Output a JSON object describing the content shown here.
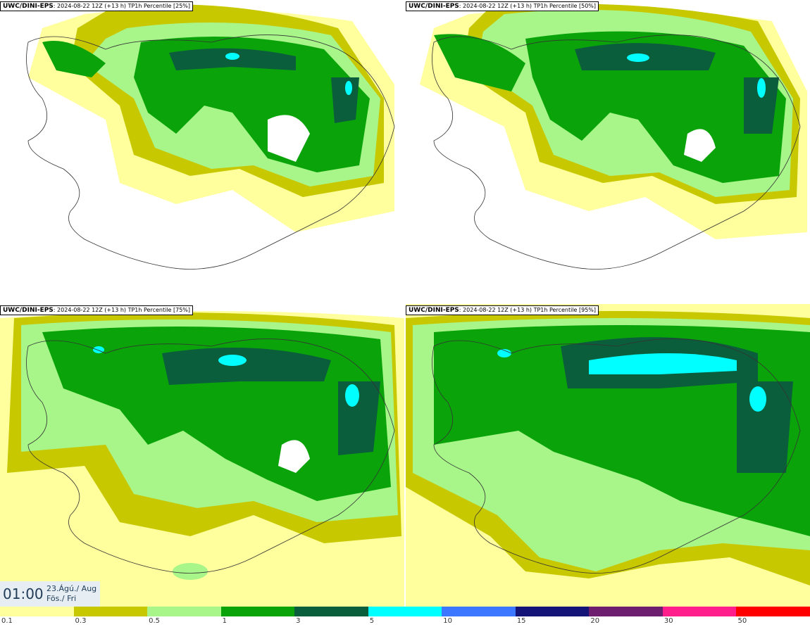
{
  "panels": [
    {
      "model": "UWC/DINI-EPS",
      "run": "2024-08-22 12Z (+13 h)",
      "field": "TP1h Percentile [25%]"
    },
    {
      "model": "UWC/DINI-EPS",
      "run": "2024-08-22 12Z (+13 h)",
      "field": "TP1h Percentile [50%]"
    },
    {
      "model": "UWC/DINI-EPS",
      "run": "2024-08-22 12Z (+13 h)",
      "field": "TP1h Percentile [75%]"
    },
    {
      "model": "UWC/DINI-EPS",
      "run": "2024-08-22 12Z (+13 h)",
      "field": "TP1h Percentile [95%]"
    }
  ],
  "valid": {
    "time": "01:00",
    "date_line1": "23.Ágú./ Aug",
    "date_line2": "Fös./ Fri"
  },
  "colorbar": {
    "colors": [
      "#ffff9e",
      "#c8c800",
      "#a8f58a",
      "#0aa40a",
      "#0b5e3c",
      "#00ffff",
      "#3c78ff",
      "#141478",
      "#6e1e6e",
      "#ff1e8c",
      "#ff0000"
    ],
    "ticks": [
      "0.1",
      "0.3",
      "0.5",
      "1",
      "3",
      "5",
      "10",
      "15",
      "20",
      "30",
      "50"
    ]
  }
}
